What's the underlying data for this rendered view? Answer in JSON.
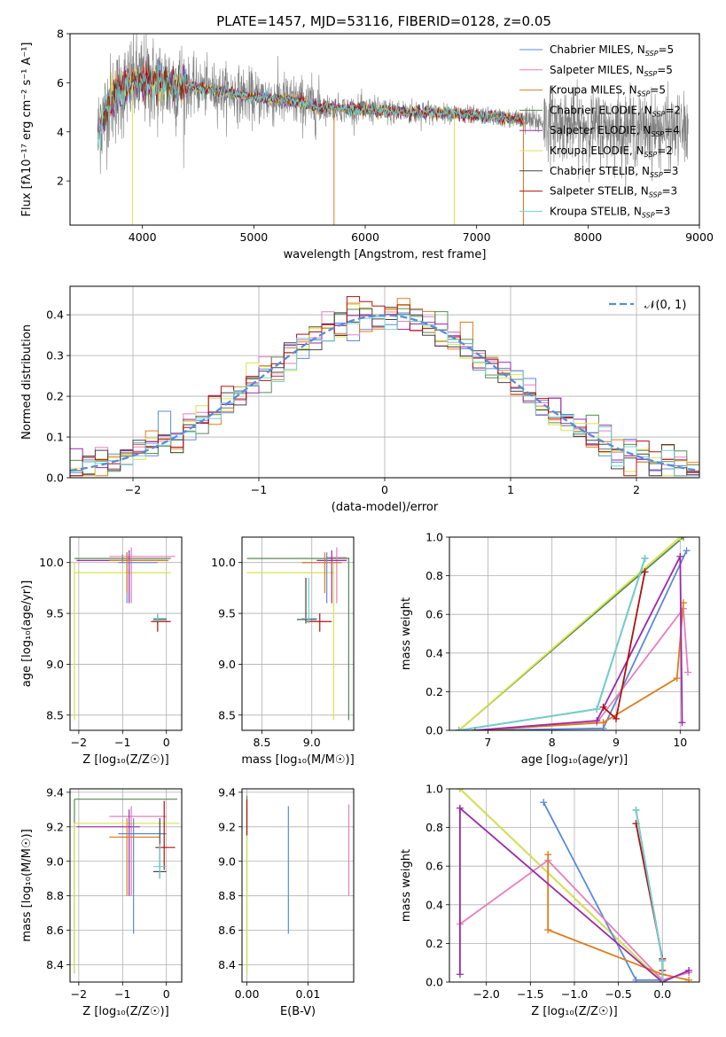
{
  "figure": {
    "title": "PLATE=1457, MJD=53116, FIBERID=0128, z=0.05"
  },
  "colors": {
    "Chabrier MILES": "#5b8bd6",
    "Salpeter MILES": "#e57fbf",
    "Kroupa MILES": "#e07b1c",
    "Chabrier ELODIE": "#5a8a55",
    "Salpeter ELODIE": "#9a2aa8",
    "Kroupa ELODIE": "#d9e34d",
    "Chabrier STELIB": "#444444",
    "Salpeter STELIB": "#b01010",
    "Kroupa STELIB": "#6fd3d3",
    "data": "#808080",
    "gauss": "#5b8bd6"
  },
  "chart_data": [
    {
      "id": "spectrum",
      "type": "line",
      "title": "PLATE=1457, MJD=53116, FIBERID=0128, z=0.05",
      "xlabel": "wavelength [Angstrom, rest frame]",
      "ylabel": "Flux [fλ10⁻¹⁷ erg cm⁻² s⁻¹ A⁻¹]",
      "xlim": [
        3350,
        9000
      ],
      "ylim": [
        0.2,
        8
      ],
      "xticks": [
        "4000",
        "5000",
        "6000",
        "7000",
        "8000",
        "9000"
      ],
      "yticks": [
        "2",
        "4",
        "6",
        "8"
      ],
      "grid": false,
      "legend": "top-right",
      "legend_entries": [
        {
          "name": "Chabrier MILES, N",
          "sub": "SSP",
          "tail": "=5"
        },
        {
          "name": "Salpeter MILES, N",
          "sub": "SSP",
          "tail": "=5"
        },
        {
          "name": "Kroupa MILES, N",
          "sub": "SSP",
          "tail": "=5"
        },
        {
          "name": "Chabrier ELODIE, N",
          "sub": "SSP",
          "tail": "=2"
        },
        {
          "name": "Salpeter ELODIE, N",
          "sub": "SSP",
          "tail": "=4"
        },
        {
          "name": "Kroupa ELODIE, N",
          "sub": "SSP",
          "tail": "=2"
        },
        {
          "name": "Chabrier STELIB, N",
          "sub": "SSP",
          "tail": "=3"
        },
        {
          "name": "Salpeter STELIB, N",
          "sub": "SSP",
          "tail": "=3"
        },
        {
          "name": "Kroupa STELIB, N",
          "sub": "SSP",
          "tail": "=3"
        }
      ],
      "continuum": {
        "x": [
          3600,
          3700,
          3900,
          4000,
          4100,
          4300,
          4500,
          4800,
          5000,
          5300,
          5600,
          6000,
          6300,
          6500,
          6800,
          7200,
          7500,
          7800,
          8000,
          8300,
          8600,
          8900
        ],
        "y": [
          4.0,
          5.2,
          6.0,
          6.1,
          6.0,
          5.9,
          5.8,
          5.6,
          5.4,
          5.3,
          5.0,
          4.9,
          4.8,
          4.8,
          4.75,
          4.6,
          4.45,
          4.3,
          4.2,
          4.15,
          4.1,
          4.05
        ]
      },
      "model_dips": [
        {
          "series": "Kroupa MILES",
          "x": 5720
        },
        {
          "series": "Kroupa ELODIE",
          "x": 6800
        },
        {
          "series": "Salpeter MILES",
          "x": 7420
        },
        {
          "series": "Kroupa MILES",
          "x": 7420
        },
        {
          "series": "Kroupa ELODIE",
          "x": 3910
        }
      ]
    },
    {
      "id": "residuals",
      "type": "bar",
      "xlabel": "(data-model)/error",
      "ylabel": "Normed distribution",
      "xlim": [
        -2.5,
        2.5
      ],
      "ylim": [
        0,
        0.47
      ],
      "xticks": [
        "−2",
        "−1",
        "0",
        "1",
        "2"
      ],
      "yticks": [
        "0.0",
        "0.1",
        "0.2",
        "0.3",
        "0.4"
      ],
      "grid": true,
      "legend": "top-right",
      "legend_label": "𝒩(0, 1)",
      "bin_width": 0.1
    },
    {
      "id": "age_vs_Z",
      "type": "scatter",
      "xlabel": "Z [log₁₀(Z/Z☉)]",
      "ylabel": "age  [log₁₀(age/yr)]",
      "xlim": [
        -2.2,
        0.35
      ],
      "ylim": [
        8.35,
        10.25
      ],
      "xticks": [
        "−2",
        "−1",
        "0"
      ],
      "yticks": [
        "8.5",
        "9.0",
        "9.5",
        "10.0"
      ],
      "grid": true,
      "crosses": [
        {
          "s": "Chabrier ELODIE",
          "cx": -1.0,
          "cy": 10.04,
          "xe": [
            -2.1,
            0.1
          ],
          "ye": [
            10.0,
            10.08
          ]
        },
        {
          "s": "Kroupa ELODIE",
          "cx": -2.1,
          "cy": 9.9,
          "xe": [
            -2.1,
            0.1
          ],
          "ye": [
            8.45,
            10.0
          ]
        },
        {
          "s": "Salpeter MILES",
          "cx": -0.8,
          "cy": 10.06,
          "xe": [
            -1.3,
            0.2
          ],
          "ye": [
            9.6,
            10.15
          ]
        },
        {
          "s": "Salpeter ELODIE",
          "cx": -0.85,
          "cy": 10.02,
          "xe": [
            -2.05,
            0.0
          ],
          "ye": [
            9.6,
            10.12
          ]
        },
        {
          "s": "Chabrier MILES",
          "cx": -0.9,
          "cy": 10.0,
          "xe": [
            -1.1,
            -0.2
          ],
          "ye": [
            9.6,
            10.1
          ]
        },
        {
          "s": "Kroupa MILES",
          "cx": -0.9,
          "cy": 10.02,
          "xe": [
            -1.3,
            0.05
          ],
          "ye": [
            9.7,
            10.1
          ]
        },
        {
          "s": "Salpeter STELIB",
          "cx": -0.2,
          "cy": 9.42,
          "xe": [
            -0.35,
            0.1
          ],
          "ye": [
            9.32,
            9.5
          ]
        },
        {
          "s": "Chabrier STELIB",
          "cx": -0.2,
          "cy": 9.44,
          "xe": [
            -0.3,
            0.0
          ],
          "ye": [
            9.4,
            9.48
          ]
        },
        {
          "s": "Kroupa STELIB",
          "cx": -0.2,
          "cy": 9.45,
          "xe": [
            -0.3,
            0.0
          ],
          "ye": [
            9.42,
            9.5
          ]
        }
      ]
    },
    {
      "id": "age_vs_mass",
      "type": "scatter",
      "xlabel": "mass [log₁₀(M/M☉)]",
      "xlim": [
        8.3,
        9.42
      ],
      "ylim": [
        8.35,
        10.25
      ],
      "xticks": [
        "8.5",
        "9.0"
      ],
      "yticks": [
        "8.5",
        "9.0",
        "9.5",
        "10.0"
      ],
      "grid": true,
      "crosses": [
        {
          "s": "Chabrier ELODIE",
          "cx": 9.37,
          "cy": 10.04,
          "xe": [
            8.35,
            9.37
          ],
          "ye": [
            8.45,
            10.05
          ]
        },
        {
          "s": "Kroupa ELODIE",
          "cx": 9.22,
          "cy": 9.9,
          "xe": [
            8.35,
            9.22
          ],
          "ye": [
            8.45,
            10.0
          ]
        },
        {
          "s": "Salpeter MILES",
          "cx": 9.25,
          "cy": 10.05,
          "xe": [
            9.15,
            9.35
          ],
          "ye": [
            9.6,
            10.15
          ]
        },
        {
          "s": "Salpeter ELODIE",
          "cx": 9.2,
          "cy": 10.02,
          "xe": [
            9.05,
            9.35
          ],
          "ye": [
            9.6,
            10.12
          ]
        },
        {
          "s": "Chabrier MILES",
          "cx": 9.15,
          "cy": 10.0,
          "xe": [
            8.9,
            9.3
          ],
          "ye": [
            9.6,
            10.1
          ]
        },
        {
          "s": "Kroupa MILES",
          "cx": 9.13,
          "cy": 10.0,
          "xe": [
            8.9,
            9.3
          ],
          "ye": [
            9.7,
            10.1
          ]
        },
        {
          "s": "Salpeter STELIB",
          "cx": 9.08,
          "cy": 9.42,
          "xe": [
            8.95,
            9.2
          ],
          "ye": [
            9.32,
            9.5
          ]
        },
        {
          "s": "Chabrier STELIB",
          "cx": 8.94,
          "cy": 9.44,
          "xe": [
            8.85,
            9.05
          ],
          "ye": [
            9.4,
            9.85
          ]
        },
        {
          "s": "Kroupa STELIB",
          "cx": 8.97,
          "cy": 9.45,
          "xe": [
            8.9,
            9.05
          ],
          "ye": [
            9.4,
            9.85
          ]
        }
      ]
    },
    {
      "id": "mass_weight_vs_age",
      "type": "line",
      "xlabel": "age  [log₁₀(age/yr)]",
      "ylabel": "mass weight",
      "xlim": [
        6.4,
        10.3
      ],
      "ylim": [
        0,
        1.0
      ],
      "xticks": [
        "7",
        "8",
        "9",
        "10"
      ],
      "yticks": [
        "0.0",
        "0.2",
        "0.4",
        "0.6",
        "0.8",
        "1.0"
      ],
      "grid": true,
      "series": [
        {
          "s": "Chabrier ELODIE",
          "x": [
            6.55,
            10.05
          ],
          "y": [
            0.0,
            1.0
          ]
        },
        {
          "s": "Kroupa ELODIE",
          "x": [
            6.55,
            10.0
          ],
          "y": [
            0.0,
            1.0
          ]
        },
        {
          "s": "Chabrier MILES",
          "x": [
            6.8,
            8.8,
            10.1
          ],
          "y": [
            0.0,
            0.01,
            0.93
          ]
        },
        {
          "s": "Salpeter MILES",
          "x": [
            6.8,
            8.7,
            10.05,
            10.12
          ],
          "y": [
            0.0,
            0.04,
            0.63,
            0.3
          ]
        },
        {
          "s": "Kroupa MILES",
          "x": [
            6.8,
            8.8,
            9.95,
            10.05
          ],
          "y": [
            0.0,
            0.04,
            0.27,
            0.66
          ]
        },
        {
          "s": "Salpeter ELODIE",
          "x": [
            6.8,
            8.7,
            10.0,
            10.03
          ],
          "y": [
            0.0,
            0.05,
            0.9,
            0.04
          ]
        },
        {
          "s": "Salpeter STELIB",
          "x": [
            8.8,
            9.0,
            9.45
          ],
          "y": [
            0.12,
            0.06,
            0.82
          ]
        },
        {
          "s": "Chabrier STELIB",
          "x": [
            6.55,
            8.7,
            9.45
          ],
          "y": [
            0.0,
            0.11,
            0.89
          ]
        },
        {
          "s": "Kroupa STELIB",
          "x": [
            6.55,
            8.7,
            9.45
          ],
          "y": [
            0.0,
            0.11,
            0.89
          ]
        }
      ]
    },
    {
      "id": "mass_vs_Z",
      "type": "scatter",
      "xlabel": "Z [log₁₀(Z/Z☉)]",
      "ylabel": "mass [log₁₀(M/M☉)]",
      "xlim": [
        -2.2,
        0.35
      ],
      "ylim": [
        8.3,
        9.42
      ],
      "xticks": [
        "−2",
        "−1",
        "0"
      ],
      "yticks": [
        "8.4",
        "8.6",
        "8.8",
        "9.0",
        "9.2",
        "9.4"
      ],
      "grid": true,
      "crosses": [
        {
          "s": "Chabrier ELODIE",
          "cx": -2.1,
          "cy": 9.36,
          "xe": [
            -2.1,
            0.25
          ],
          "ye": [
            8.35,
            9.36
          ]
        },
        {
          "s": "Kroupa ELODIE",
          "cx": -2.1,
          "cy": 9.22,
          "xe": [
            -2.1,
            0.3
          ],
          "ye": [
            8.35,
            9.22
          ]
        },
        {
          "s": "Salpeter MILES",
          "cx": -0.8,
          "cy": 9.26,
          "xe": [
            -1.3,
            0.0
          ],
          "ye": [
            8.8,
            9.32
          ]
        },
        {
          "s": "Salpeter ELODIE",
          "cx": -0.85,
          "cy": 9.2,
          "xe": [
            -2.05,
            -0.6
          ],
          "ye": [
            8.8,
            9.3
          ]
        },
        {
          "s": "Chabrier MILES",
          "cx": -0.75,
          "cy": 9.16,
          "xe": [
            -1.1,
            0.0
          ],
          "ye": [
            8.58,
            9.25
          ]
        },
        {
          "s": "Kroupa MILES",
          "cx": -0.9,
          "cy": 9.14,
          "xe": [
            -1.3,
            -0.15
          ],
          "ye": [
            8.8,
            9.25
          ]
        },
        {
          "s": "Salpeter STELIB",
          "cx": -0.05,
          "cy": 9.08,
          "xe": [
            -0.25,
            0.2
          ],
          "ye": [
            8.95,
            9.35
          ]
        },
        {
          "s": "Chabrier STELIB",
          "cx": -0.15,
          "cy": 8.94,
          "xe": [
            -0.3,
            0.0
          ],
          "ye": [
            8.9,
            9.25
          ]
        },
        {
          "s": "Kroupa STELIB",
          "cx": -0.15,
          "cy": 8.97,
          "xe": [
            -0.3,
            0.0
          ],
          "ye": [
            8.9,
            9.1
          ]
        }
      ]
    },
    {
      "id": "mass_vs_EBV",
      "type": "scatter",
      "xlabel": "E(B-V)",
      "xlim": [
        -0.0008,
        0.0175
      ],
      "ylim": [
        8.3,
        9.42
      ],
      "xticks": [
        "0.00",
        "0.01"
      ],
      "yticks": [
        "8.4",
        "8.6",
        "8.8",
        "9.0",
        "9.2",
        "9.4"
      ],
      "grid": true,
      "crosses": [
        {
          "s": "Chabrier ELODIE",
          "cx": 0.0,
          "cy": 9.0,
          "xe": [
            0.0,
            0.0
          ],
          "ye": [
            8.35,
            9.38
          ]
        },
        {
          "s": "Kroupa ELODIE",
          "cx": 0.0,
          "cy": 9.0,
          "xe": [
            0.0,
            0.0
          ],
          "ye": [
            8.35,
            9.3
          ]
        },
        {
          "s": "Salpeter STELIB",
          "cx": 0.0,
          "cy": 9.2,
          "xe": [
            0.0,
            0.0
          ],
          "ye": [
            9.15,
            9.36
          ]
        },
        {
          "s": "Chabrier MILES",
          "cx": 0.0068,
          "cy": 8.95,
          "xe": [
            0.0068,
            0.0068
          ],
          "ye": [
            8.58,
            9.32
          ]
        },
        {
          "s": "Salpeter MILES",
          "cx": 0.0167,
          "cy": 9.05,
          "xe": [
            0.0167,
            0.0167
          ],
          "ye": [
            8.8,
            9.33
          ]
        }
      ]
    },
    {
      "id": "mass_weight_vs_Z",
      "type": "line",
      "xlabel": "Z [log₁₀(Z/Z☉)]",
      "ylabel": "mass weight",
      "xlim": [
        -2.42,
        0.42
      ],
      "ylim": [
        0,
        1.0
      ],
      "xticks": [
        "−2.0",
        "−1.5",
        "−1.0",
        "−0.5",
        "0.0"
      ],
      "yticks": [
        "0.0",
        "0.2",
        "0.4",
        "0.6",
        "0.8",
        "1.0"
      ],
      "grid": true,
      "series": [
        {
          "s": "Chabrier ELODIE",
          "x": [
            -2.3,
            0.0
          ],
          "y": [
            1.0,
            0.0
          ]
        },
        {
          "s": "Kroupa ELODIE",
          "x": [
            -2.3,
            0.0
          ],
          "y": [
            1.0,
            0.0
          ]
        },
        {
          "s": "Chabrier MILES",
          "x": [
            -1.35,
            -0.3,
            0.0,
            0.3
          ],
          "y": [
            0.93,
            0.01,
            0.01,
            0.05
          ]
        },
        {
          "s": "Salpeter MILES",
          "x": [
            -2.3,
            -1.3,
            0.0,
            0.3
          ],
          "y": [
            0.3,
            0.63,
            0.01,
            0.05
          ]
        },
        {
          "s": "Kroupa MILES",
          "x": [
            -1.3,
            -1.3,
            0.0,
            0.3
          ],
          "y": [
            0.66,
            0.27,
            0.04,
            0.01
          ]
        },
        {
          "s": "Salpeter ELODIE",
          "x": [
            -2.3,
            -2.3,
            0.0,
            0.3
          ],
          "y": [
            0.04,
            0.9,
            0.0,
            0.06
          ]
        },
        {
          "s": "Salpeter STELIB",
          "x": [
            -0.3,
            0.0,
            0.0
          ],
          "y": [
            0.82,
            0.12,
            0.06
          ]
        },
        {
          "s": "Chabrier STELIB",
          "x": [
            -0.3,
            0.0,
            0.0
          ],
          "y": [
            0.89,
            0.11,
            0.0
          ]
        },
        {
          "s": "Kroupa STELIB",
          "x": [
            -0.3,
            0.0,
            0.0
          ],
          "y": [
            0.89,
            0.11,
            0.0
          ]
        }
      ]
    }
  ]
}
